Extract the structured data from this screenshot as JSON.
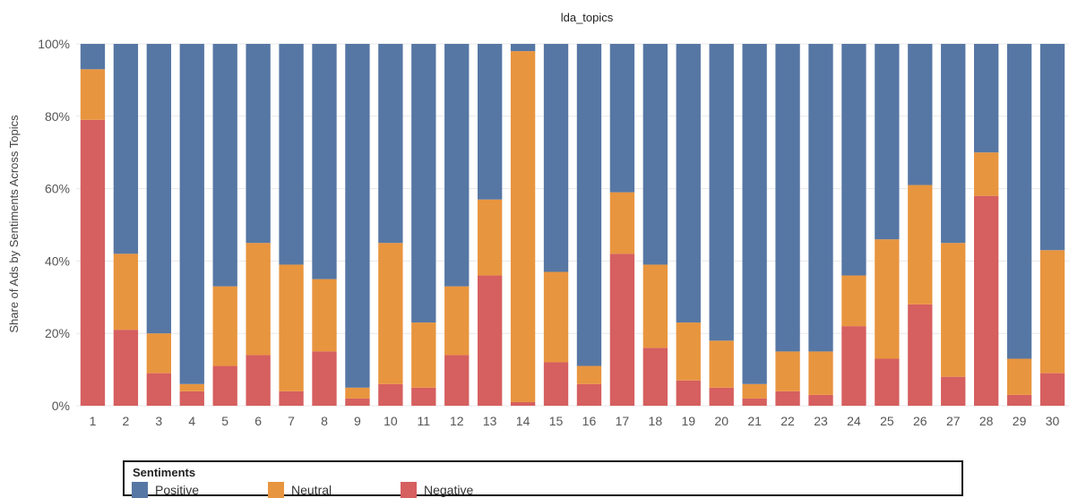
{
  "chart_data": {
    "type": "bar",
    "stacked": true,
    "title": "lda_topics",
    "xlabel": "",
    "ylabel": "Share of Ads by Sentiments Across Topics",
    "ylim": [
      0,
      100
    ],
    "yticks": [
      "0%",
      "20%",
      "40%",
      "60%",
      "80%",
      "100%"
    ],
    "categories": [
      "1",
      "2",
      "3",
      "4",
      "5",
      "6",
      "7",
      "8",
      "9",
      "10",
      "11",
      "12",
      "13",
      "14",
      "15",
      "16",
      "17",
      "18",
      "19",
      "20",
      "21",
      "22",
      "23",
      "24",
      "25",
      "26",
      "27",
      "28",
      "29",
      "30"
    ],
    "series": [
      {
        "name": "Negative",
        "color": "#d65f5f",
        "values": [
          79,
          21,
          9,
          4,
          11,
          14,
          4,
          15,
          2,
          6,
          5,
          14,
          36,
          1,
          12,
          6,
          42,
          16,
          7,
          5,
          2,
          4,
          3,
          22,
          13,
          28,
          8,
          58,
          3,
          9
        ]
      },
      {
        "name": "Neutral",
        "color": "#e8953f",
        "values": [
          14,
          21,
          11,
          2,
          22,
          31,
          35,
          20,
          3,
          39,
          18,
          19,
          21,
          97,
          25,
          5,
          17,
          23,
          16,
          13,
          4,
          11,
          12,
          14,
          33,
          33,
          37,
          12,
          10,
          34
        ]
      },
      {
        "name": "Positive",
        "color": "#5677a4",
        "values": [
          7,
          58,
          80,
          94,
          67,
          55,
          61,
          65,
          95,
          55,
          77,
          67,
          43,
          2,
          63,
          89,
          41,
          61,
          77,
          82,
          94,
          85,
          85,
          64,
          54,
          39,
          55,
          30,
          87,
          57
        ]
      }
    ],
    "grid": true,
    "legend": {
      "title": "Sentiments",
      "position": "bottom",
      "order": [
        "Positive",
        "Neutral",
        "Negative"
      ]
    }
  }
}
